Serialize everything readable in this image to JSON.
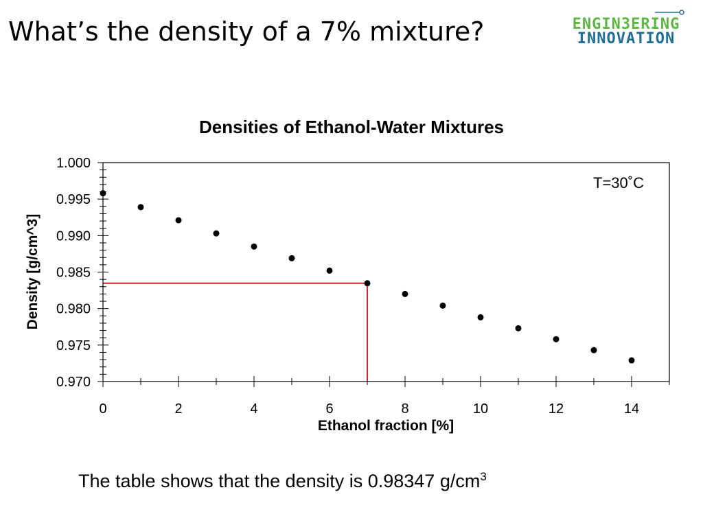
{
  "slide": {
    "title": "What’s the density of a 7% mixture?",
    "footnote_text": "The table shows that the density is 0.98347 g/cm",
    "footnote_superscript": "3"
  },
  "logo": {
    "line1": "ENGIN3ERING",
    "line2": "INNOVATION",
    "color_line1": "#5db544",
    "color_line2": "#1f6f94"
  },
  "chart_data": {
    "type": "scatter",
    "title": "Densities of Ethanol-Water Mixtures",
    "xlabel": "Ethanol fraction [%]",
    "ylabel": "Density [g/cm^3]",
    "annotation": "T=30˚C",
    "xlim": [
      0,
      15
    ],
    "ylim": [
      0.97,
      1.0
    ],
    "x_ticks": [
      "0",
      "2",
      "4",
      "6",
      "8",
      "10",
      "12",
      "14"
    ],
    "y_ticks": [
      "0.970",
      "0.975",
      "0.980",
      "0.985",
      "0.990",
      "0.995",
      "1.000"
    ],
    "grid": false,
    "legend": "none",
    "marker_color": "#000000",
    "x": [
      0,
      1,
      2,
      3,
      4,
      5,
      6,
      7,
      8,
      9,
      10,
      11,
      12,
      13,
      14
    ],
    "y": [
      0.9958,
      0.9939,
      0.9921,
      0.9903,
      0.9885,
      0.9869,
      0.9852,
      0.98347,
      0.982,
      0.9804,
      0.9788,
      0.9773,
      0.9758,
      0.9743,
      0.9729
    ],
    "highlight": {
      "x": 7,
      "y": 0.98347,
      "color": "#d62728"
    }
  }
}
